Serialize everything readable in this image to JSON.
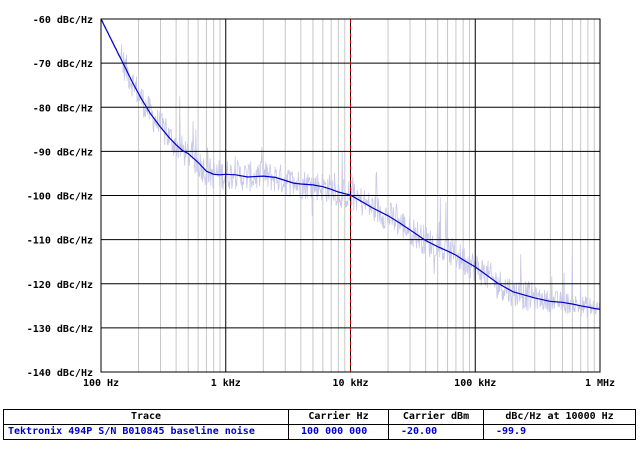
{
  "chart_data": {
    "type": "line",
    "x_scale": "log",
    "xlim": [
      100,
      1000000
    ],
    "ylim": [
      -140,
      -60
    ],
    "grid": true,
    "y_ticks": [
      {
        "value": -60,
        "label": "-60 dBc/Hz"
      },
      {
        "value": -70,
        "label": "-70 dBc/Hz"
      },
      {
        "value": -80,
        "label": "-80 dBc/Hz"
      },
      {
        "value": -90,
        "label": "-90 dBc/Hz"
      },
      {
        "value": -100,
        "label": "-100 dBc/Hz"
      },
      {
        "value": -110,
        "label": "-110 dBc/Hz"
      },
      {
        "value": -120,
        "label": "-120 dBc/Hz"
      },
      {
        "value": -130,
        "label": "-130 dBc/Hz"
      },
      {
        "value": -140,
        "label": "-140 dBc/Hz"
      }
    ],
    "x_ticks": [
      {
        "value": 100,
        "label": "100 Hz"
      },
      {
        "value": 1000,
        "label": "1 kHz"
      },
      {
        "value": 10000,
        "label": "10 kHz"
      },
      {
        "value": 100000,
        "label": "100 kHz"
      },
      {
        "value": 1000000,
        "label": "1 MHz"
      }
    ],
    "marker_x": 10000,
    "series": [
      {
        "color": "#0000c8",
        "points": [
          [
            100,
            -60
          ],
          [
            120,
            -64.5
          ],
          [
            150,
            -70
          ],
          [
            180,
            -74.5
          ],
          [
            210,
            -78
          ],
          [
            250,
            -81.5
          ],
          [
            300,
            -84.5
          ],
          [
            350,
            -86.8
          ],
          [
            400,
            -88.5
          ],
          [
            450,
            -89.8
          ],
          [
            500,
            -90.5
          ],
          [
            600,
            -92.5
          ],
          [
            700,
            -94.5
          ],
          [
            800,
            -95.2
          ],
          [
            900,
            -95.3
          ],
          [
            1000,
            -95.2
          ],
          [
            1200,
            -95.3
          ],
          [
            1500,
            -95.8
          ],
          [
            2000,
            -95.6
          ],
          [
            2500,
            -95.9
          ],
          [
            3000,
            -96.6
          ],
          [
            3500,
            -97.2
          ],
          [
            4000,
            -97.4
          ],
          [
            5000,
            -97.6
          ],
          [
            6000,
            -98.0
          ],
          [
            7000,
            -98.6
          ],
          [
            8000,
            -99.2
          ],
          [
            9000,
            -99.6
          ],
          [
            10000,
            -99.9
          ],
          [
            12000,
            -101.2
          ],
          [
            15000,
            -102.8
          ],
          [
            20000,
            -104.6
          ],
          [
            25000,
            -106.3
          ],
          [
            30000,
            -107.8
          ],
          [
            40000,
            -110.2
          ],
          [
            50000,
            -111.6
          ],
          [
            60000,
            -112.6
          ],
          [
            70000,
            -113.5
          ],
          [
            80000,
            -114.6
          ],
          [
            100000,
            -116.2
          ],
          [
            120000,
            -117.8
          ],
          [
            150000,
            -119.8
          ],
          [
            200000,
            -121.8
          ],
          [
            250000,
            -122.6
          ],
          [
            300000,
            -123.2
          ],
          [
            400000,
            -124.0
          ],
          [
            500000,
            -124.2
          ],
          [
            600000,
            -124.6
          ],
          [
            700000,
            -125.0
          ],
          [
            800000,
            -125.3
          ],
          [
            900000,
            -125.6
          ],
          [
            1000000,
            -125.8
          ]
        ]
      }
    ],
    "colors": {
      "trace": "#0000c8",
      "raw_trace": "#c8c8e8",
      "grid_major": "#000000",
      "grid_minor": "#c8c8c8",
      "marker": "#c80000"
    }
  },
  "legend_table": {
    "headers": [
      "Trace",
      "Carrier Hz",
      "Carrier dBm",
      "dBc/Hz at 10000 Hz"
    ],
    "rows": [
      [
        "Tektronix 494P S/N B010845 baseline noise",
        "100 000 000",
        "-20.00",
        "-99.9"
      ]
    ]
  }
}
